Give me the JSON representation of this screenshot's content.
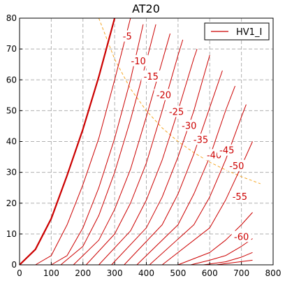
{
  "colors": {
    "curve": "#cc0000",
    "pdiss": "#f5a623",
    "grid": "#b0b0b0",
    "axis": "#000000"
  },
  "chart_data": {
    "type": "line",
    "title": "AT20",
    "xlabel": "",
    "ylabel": "",
    "xlim": [
      0,
      800
    ],
    "ylim": [
      0,
      80
    ],
    "xticks": [
      0,
      100,
      200,
      300,
      400,
      500,
      600,
      700,
      800
    ],
    "yticks": [
      0,
      10,
      20,
      30,
      40,
      50,
      60,
      70,
      80
    ],
    "grid": true,
    "legend": {
      "position": "top-right",
      "entries": [
        "HV1_I"
      ]
    },
    "series": [
      {
        "name": "HV1_I",
        "grid_voltage_label": "",
        "x": [
          0,
          50,
          100,
          150,
          200,
          250,
          300
        ],
        "y": [
          0,
          5,
          15,
          29,
          44,
          61,
          80
        ]
      },
      {
        "grid_voltage_label": "-5",
        "x": [
          50,
          100,
          150,
          200,
          250,
          300,
          350
        ],
        "y": [
          0,
          3,
          13,
          26,
          41,
          60,
          80
        ]
      },
      {
        "grid_voltage_label": "-10",
        "x": [
          100,
          150,
          200,
          250,
          300,
          350,
          390
        ],
        "y": [
          0,
          3,
          12,
          25,
          41,
          60,
          78
        ]
      },
      {
        "grid_voltage_label": "-15",
        "x": [
          130,
          200,
          250,
          300,
          350,
          400,
          430
        ],
        "y": [
          0,
          6,
          16,
          30,
          47,
          66,
          78
        ]
      },
      {
        "grid_voltage_label": "-20",
        "x": [
          170,
          250,
          300,
          350,
          400,
          450,
          475
        ],
        "y": [
          0,
          8,
          18,
          31,
          48,
          66,
          75
        ]
      },
      {
        "grid_voltage_label": "-25",
        "x": [
          210,
          300,
          350,
          400,
          450,
          500,
          515
        ],
        "y": [
          0,
          10,
          20,
          33,
          50,
          68,
          73
        ]
      },
      {
        "grid_voltage_label": "-30",
        "x": [
          250,
          350,
          400,
          450,
          500,
          550,
          560
        ],
        "y": [
          0,
          11,
          21,
          34,
          50,
          67,
          70
        ]
      },
      {
        "grid_voltage_label": "-35",
        "x": [
          290,
          400,
          450,
          500,
          550,
          600
        ],
        "y": [
          0,
          12,
          22,
          35,
          50,
          68
        ]
      },
      {
        "grid_voltage_label": "-40",
        "x": [
          330,
          450,
          500,
          550,
          600,
          640
        ],
        "y": [
          0,
          13,
          23,
          36,
          51,
          63
        ]
      },
      {
        "grid_voltage_label": "-45",
        "x": [
          370,
          500,
          550,
          600,
          650,
          680
        ],
        "y": [
          0,
          13,
          23,
          35,
          50,
          58
        ]
      },
      {
        "grid_voltage_label": "-50",
        "x": [
          410,
          550,
          600,
          650,
          700,
          715
        ],
        "y": [
          0,
          13,
          22,
          34,
          48,
          52
        ]
      },
      {
        "grid_voltage_label": "-55",
        "x": [
          450,
          600,
          650,
          700,
          735
        ],
        "y": [
          0,
          12,
          21,
          32,
          40
        ]
      },
      {
        "grid_voltage_label": "-60",
        "x": [
          500,
          600,
          650,
          700,
          735
        ],
        "y": [
          0,
          4,
          8,
          13,
          17
        ]
      },
      {
        "grid_voltage_label": "",
        "x": [
          540,
          600,
          650,
          700,
          735
        ],
        "y": [
          0,
          1.5,
          3,
          6,
          8.5
        ]
      },
      {
        "grid_voltage_label": "",
        "x": [
          580,
          650,
          700,
          735
        ],
        "y": [
          0,
          1,
          2.5,
          4
        ]
      },
      {
        "grid_voltage_label": "",
        "x": [
          620,
          680,
          735
        ],
        "y": [
          0,
          0.8,
          1.5
        ]
      }
    ],
    "pdiss_curve": {
      "x": [
        250,
        300,
        350,
        400,
        450,
        500,
        550,
        600,
        650,
        700,
        760
      ],
      "y": [
        80,
        66.7,
        57.1,
        50,
        44.4,
        40,
        36.4,
        33.3,
        30.8,
        28.6,
        26.3
      ]
    },
    "curve_labels": [
      {
        "text": "-5",
        "x": 340,
        "y": 74
      },
      {
        "text": "-10",
        "x": 375,
        "y": 66
      },
      {
        "text": "-15",
        "x": 415,
        "y": 61
      },
      {
        "text": "-20",
        "x": 455,
        "y": 55
      },
      {
        "text": "-25",
        "x": 495,
        "y": 49.5
      },
      {
        "text": "-30",
        "x": 535,
        "y": 45
      },
      {
        "text": "-35",
        "x": 572,
        "y": 40.5
      },
      {
        "text": "-40",
        "x": 614,
        "y": 35.5
      },
      {
        "text": "-45",
        "x": 654,
        "y": 37
      },
      {
        "text": "-50",
        "x": 685,
        "y": 32
      },
      {
        "text": "-55",
        "x": 695,
        "y": 22
      },
      {
        "text": "-60",
        "x": 700,
        "y": 9
      }
    ]
  }
}
